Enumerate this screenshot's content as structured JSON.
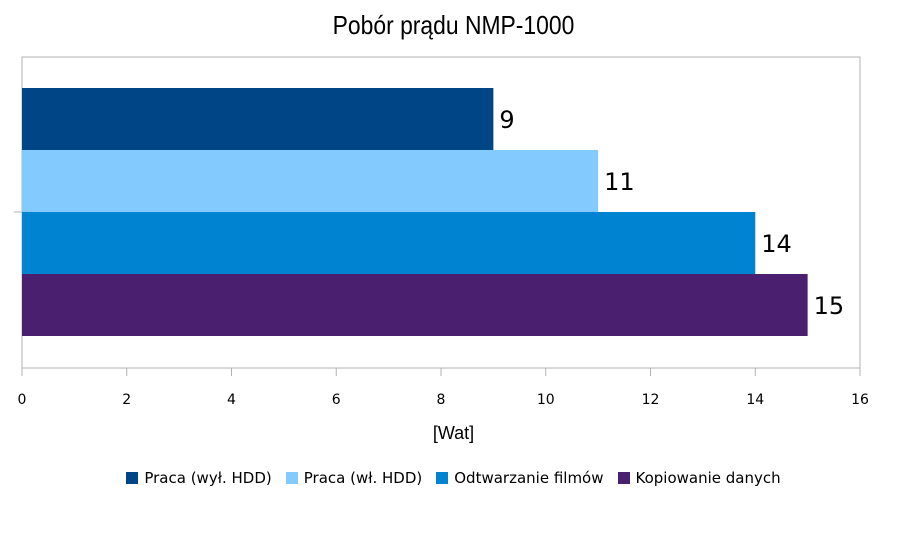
{
  "chart_data": {
    "type": "bar",
    "orientation": "horizontal",
    "title": "Pobór prądu NMP-1000",
    "xlabel": "[Wat]",
    "xlim": [
      0,
      16
    ],
    "xticks": [
      0,
      2,
      4,
      6,
      8,
      10,
      12,
      14,
      16
    ],
    "grid": false,
    "legend_position": "bottom",
    "series": [
      {
        "name": "Praca (wył. HDD)",
        "values": [
          9
        ],
        "color": "#004586"
      },
      {
        "name": "Praca (wł. HDD)",
        "values": [
          11
        ],
        "color": "#83caff"
      },
      {
        "name": "Odtwarzanie filmów",
        "values": [
          14
        ],
        "color": "#0084d1"
      },
      {
        "name": "Kopiowanie danych",
        "values": [
          15
        ],
        "color": "#4b1f6f"
      }
    ],
    "data_labels": [
      "9",
      "11",
      "14",
      "15"
    ]
  }
}
